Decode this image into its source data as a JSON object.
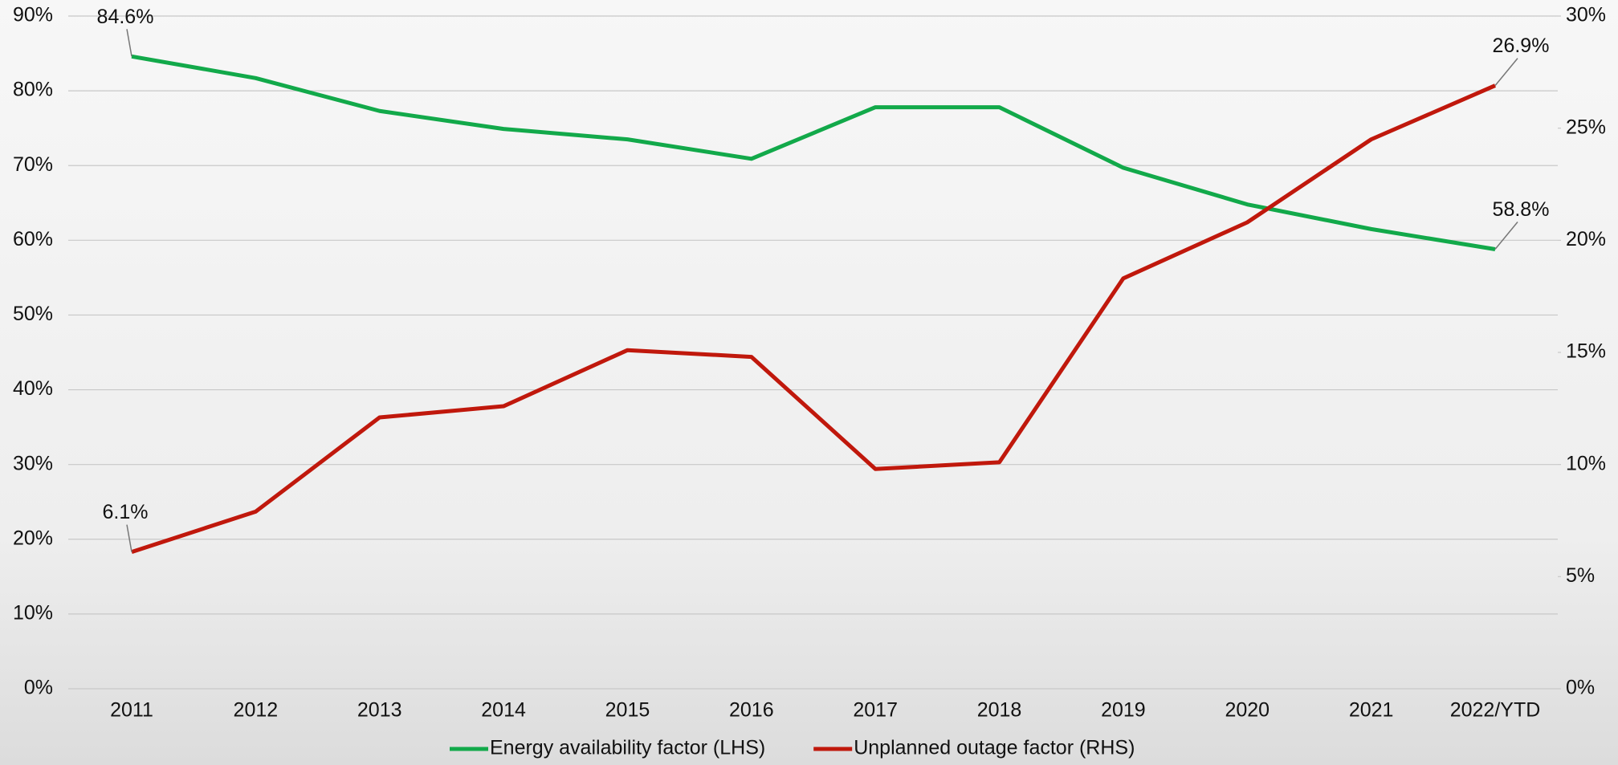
{
  "chart_data": {
    "type": "line",
    "categories": [
      "2011",
      "2012",
      "2013",
      "2014",
      "2015",
      "2016",
      "2017",
      "2018",
      "2019",
      "2020",
      "2021",
      "2022/YTD"
    ],
    "series": [
      {
        "name": "Energy availability factor (LHS)",
        "color": "#12a94a",
        "axis": "y",
        "values": [
          84.6,
          81.7,
          77.3,
          74.9,
          73.5,
          70.9,
          77.8,
          77.8,
          69.7,
          64.8,
          61.5,
          58.8
        ],
        "value_labels": [
          "84.6%",
          null,
          null,
          null,
          null,
          null,
          null,
          null,
          null,
          null,
          null,
          "58.8%"
        ]
      },
      {
        "name": "Unplanned outage factor (RHS)",
        "color": "#c0180c",
        "axis": "y2",
        "values": [
          6.1,
          7.9,
          12.1,
          12.6,
          15.1,
          14.8,
          9.8,
          10.1,
          18.3,
          20.8,
          24.5,
          26.9
        ],
        "value_labels": [
          "6.1%",
          null,
          null,
          null,
          null,
          null,
          null,
          null,
          null,
          null,
          null,
          "26.9%"
        ]
      }
    ],
    "ylim": [
      0,
      90
    ],
    "yticks": [
      {
        "value": 0,
        "label": "0%"
      },
      {
        "value": 10,
        "label": "10%"
      },
      {
        "value": 20,
        "label": "20%"
      },
      {
        "value": 30,
        "label": "30%"
      },
      {
        "value": 40,
        "label": "40%"
      },
      {
        "value": 50,
        "label": "50%"
      },
      {
        "value": 60,
        "label": "60%"
      },
      {
        "value": 70,
        "label": "70%"
      },
      {
        "value": 80,
        "label": "80%"
      },
      {
        "value": 90,
        "label": "90%"
      }
    ],
    "y2lim": [
      0,
      30
    ],
    "y2ticks": [
      {
        "value": 0,
        "label": "0%"
      },
      {
        "value": 5,
        "label": "5%"
      },
      {
        "value": 10,
        "label": "10%"
      },
      {
        "value": 15,
        "label": "15%"
      },
      {
        "value": 20,
        "label": "20%"
      },
      {
        "value": 25,
        "label": "25%"
      },
      {
        "value": 30,
        "label": "30%"
      }
    ],
    "grid": true,
    "legend": "bottom"
  }
}
